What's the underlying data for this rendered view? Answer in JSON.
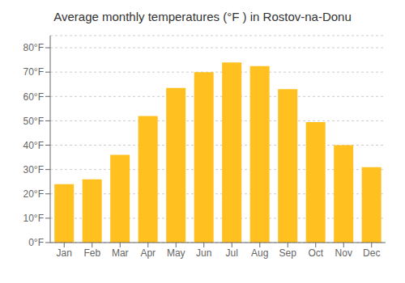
{
  "chart_data": {
    "type": "bar",
    "title": "Average monthly temperatures (°F ) in Rostov-na-Donu",
    "categories": [
      "Jan",
      "Feb",
      "Mar",
      "Apr",
      "May",
      "Jun",
      "Jul",
      "Aug",
      "Sep",
      "Oct",
      "Nov",
      "Dec"
    ],
    "values": [
      24,
      26,
      36,
      52,
      63.5,
      70,
      74,
      72.5,
      63,
      49.5,
      40,
      31
    ],
    "color": "#FFC020",
    "ylim": [
      0,
      85
    ],
    "yticks": [
      {
        "value": 0,
        "label": "0°F"
      },
      {
        "value": 10,
        "label": "10°F"
      },
      {
        "value": 20,
        "label": "20°F"
      },
      {
        "value": 30,
        "label": "30°F"
      },
      {
        "value": 40,
        "label": "40°F"
      },
      {
        "value": 50,
        "label": "50°F"
      },
      {
        "value": 60,
        "label": "60°F"
      },
      {
        "value": 70,
        "label": "70°F"
      },
      {
        "value": 80,
        "label": "80°F"
      }
    ],
    "grid": true
  }
}
